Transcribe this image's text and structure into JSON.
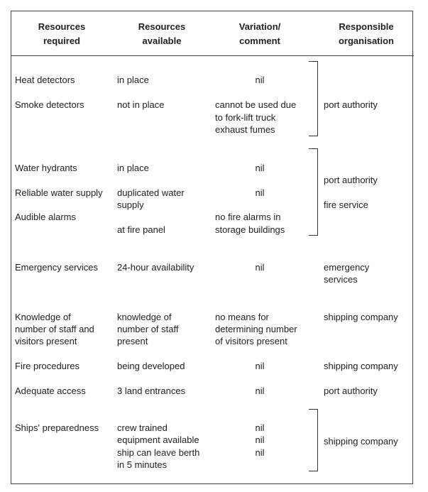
{
  "headers": [
    [
      "Resources",
      "required"
    ],
    [
      "Resources",
      "available"
    ],
    [
      "Variation/",
      "comment"
    ],
    [
      "Responsible",
      "organisation"
    ]
  ],
  "rows": {
    "heat": {
      "required": "Heat detectors",
      "available": "in place",
      "comment": "nil"
    },
    "smoke": {
      "required": "Smoke detectors",
      "available": "not in place",
      "comment": [
        "cannot be used due",
        "to fork-lift truck",
        "exhaust fumes"
      ]
    },
    "group1_org": "port authority",
    "hydrants": {
      "required": "Water hydrants",
      "available": "in place",
      "comment": "nil"
    },
    "water": {
      "required": "Reliable water supply",
      "available": [
        "duplicated water",
        "supply"
      ],
      "comment": "nil"
    },
    "alarms": {
      "required": "Audible alarms",
      "available": "at fire panel",
      "comment": [
        "no fire alarms in",
        "storage buildings"
      ]
    },
    "group2_org": [
      "port authority",
      "fire service"
    ],
    "emergency": {
      "required": "Emergency services",
      "available": "24-hour availability",
      "comment": "nil",
      "org": [
        "emergency",
        "services"
      ]
    },
    "knowledge": {
      "required": [
        "Knowledge of",
        "number of staff and",
        "visitors present"
      ],
      "available": [
        "knowledge of",
        "number of staff",
        "present"
      ],
      "comment": [
        "no means for",
        "determining number",
        "of visitors present"
      ],
      "org": "shipping company"
    },
    "fire_procedures": {
      "required": "Fire procedures",
      "available": "being developed",
      "comment": "nil",
      "org": "shipping company"
    },
    "access": {
      "required": "Adequate access",
      "available": "3 land entrances",
      "comment": "nil",
      "org": "port authority"
    },
    "ships": {
      "required": "Ships' preparedness",
      "available": [
        "crew trained",
        "equipment available",
        "ship can leave berth",
        "in 5 minutes"
      ],
      "comment": [
        "nil",
        "nil",
        "nil"
      ],
      "org": "shipping company"
    }
  }
}
